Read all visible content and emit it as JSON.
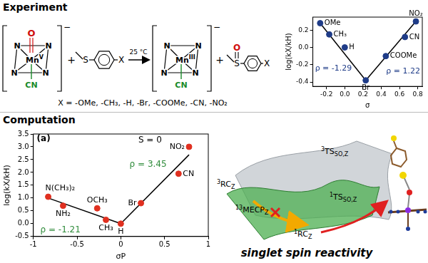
{
  "sections": {
    "experiment": "Experiment",
    "computation": "Computation"
  },
  "scheme": {
    "reactant": {
      "donor": "N",
      "metal": "Mn",
      "oxidation": "V",
      "oxo": "O",
      "axial": "CN",
      "charge": "−"
    },
    "plus": "+",
    "substrate": {
      "heteroatom": "S",
      "substituent": "X"
    },
    "condition": "25 °C",
    "product": {
      "donor": "N",
      "metal": "Mn",
      "oxidation": "III",
      "axial": "CN",
      "charge": "−"
    },
    "sulfoxide": {
      "heteroatom": "S",
      "oxo": "O",
      "substituent": "X"
    },
    "substituents": "X = -OMe, -CH₃, -H, -Br, -COOMe, -CN, -NO₂"
  },
  "chart_data": [
    {
      "type": "scatter",
      "x_label": "σ",
      "y_label": "log(kX/kH)",
      "xlim": [
        -0.35,
        0.85
      ],
      "xticks": [
        -0.2,
        {
          "value": 0,
          "label": "0.0"
        },
        0.2,
        0.4,
        0.6,
        0.8
      ],
      "ylim": [
        -0.45,
        0.35
      ],
      "yticks": [
        -0.4,
        -0.2,
        {
          "value": 0,
          "label": "0.0"
        },
        0.2
      ],
      "grid": false,
      "series": [
        {
          "type": "scatter",
          "color": "#1f3c88",
          "marker": "circle",
          "x": [
            -0.27,
            -0.17,
            0,
            0.23,
            0.45,
            0.66,
            0.78
          ],
          "values": [
            0.28,
            0.15,
            0,
            -0.38,
            -0.1,
            0.12,
            0.3
          ],
          "labels": [
            "OMe",
            "CH₃",
            "H",
            "Br",
            "COOMe",
            "CN",
            "NO₂"
          ]
        },
        {
          "type": "line",
          "color": "#000000",
          "x": [
            -0.27,
            0.23
          ],
          "values": [
            0.28,
            -0.38
          ]
        },
        {
          "type": "line",
          "color": "#000000",
          "x": [
            0.23,
            0.78
          ],
          "values": [
            -0.38,
            0.3
          ]
        }
      ],
      "annotations": [
        {
          "text": "ρ = -1.29",
          "color": "#1f3c88"
        },
        {
          "text": "ρ = 1.22",
          "color": "#1f3c88"
        }
      ]
    },
    {
      "type": "scatter",
      "x_label": "σP",
      "y_label": "log(kX/kH)",
      "xlim": [
        -1,
        1
      ],
      "xticks": [
        -1,
        -0.5,
        0,
        0.5,
        1
      ],
      "ylim": [
        -0.5,
        3.5
      ],
      "yticks": [
        -0.5,
        {
          "value": 0,
          "label": "0.0"
        },
        0.5,
        {
          "value": 1,
          "label": "1.0"
        },
        1.5,
        {
          "value": 2,
          "label": "2.0"
        },
        2.5,
        {
          "value": 3,
          "label": "3.0"
        },
        3.5
      ],
      "grid": false,
      "series": [
        {
          "type": "scatter",
          "color": "#e03020",
          "marker": "circle",
          "x": [
            -0.83,
            -0.66,
            -0.27,
            -0.17,
            0,
            0.23,
            0.66,
            0.78
          ],
          "values": [
            1.05,
            0.7,
            0.6,
            0.15,
            0,
            0.8,
            1.95,
            3.0
          ],
          "labels": [
            "N(CH₃)₂",
            "NH₂",
            "OCH₃",
            "CH₃",
            "H",
            "Br",
            "CN",
            "NO₂"
          ]
        },
        {
          "type": "line",
          "color": "#000000",
          "x": [
            -0.83,
            0
          ],
          "values": [
            1.0,
            0
          ]
        },
        {
          "type": "line",
          "color": "#000000",
          "x": [
            0,
            0.78
          ],
          "values": [
            0,
            2.69
          ]
        }
      ],
      "annotations": [
        {
          "text": "(a)",
          "color": "#000000"
        },
        {
          "text": "ρ = -1.21",
          "color": "#2e8b3a"
        },
        {
          "text": "ρ = 3.45",
          "color": "#2e8b3a"
        },
        {
          "text": "S = 0",
          "color": "#000000"
        }
      ]
    }
  ],
  "energy_surface": {
    "states": [
      {
        "sup": "3",
        "base": "TS",
        "sub": "SO,Z"
      },
      {
        "sup": "3",
        "base": "RC",
        "sub": "Z"
      },
      {
        "sup": "13",
        "base": "MECP",
        "sub": "Z"
      },
      {
        "sup": "1",
        "base": "TS",
        "sub": "SO,Z"
      },
      {
        "sup": "1",
        "base": "RC",
        "sub": "Z"
      }
    ],
    "caption": "singlet spin reactivity"
  }
}
